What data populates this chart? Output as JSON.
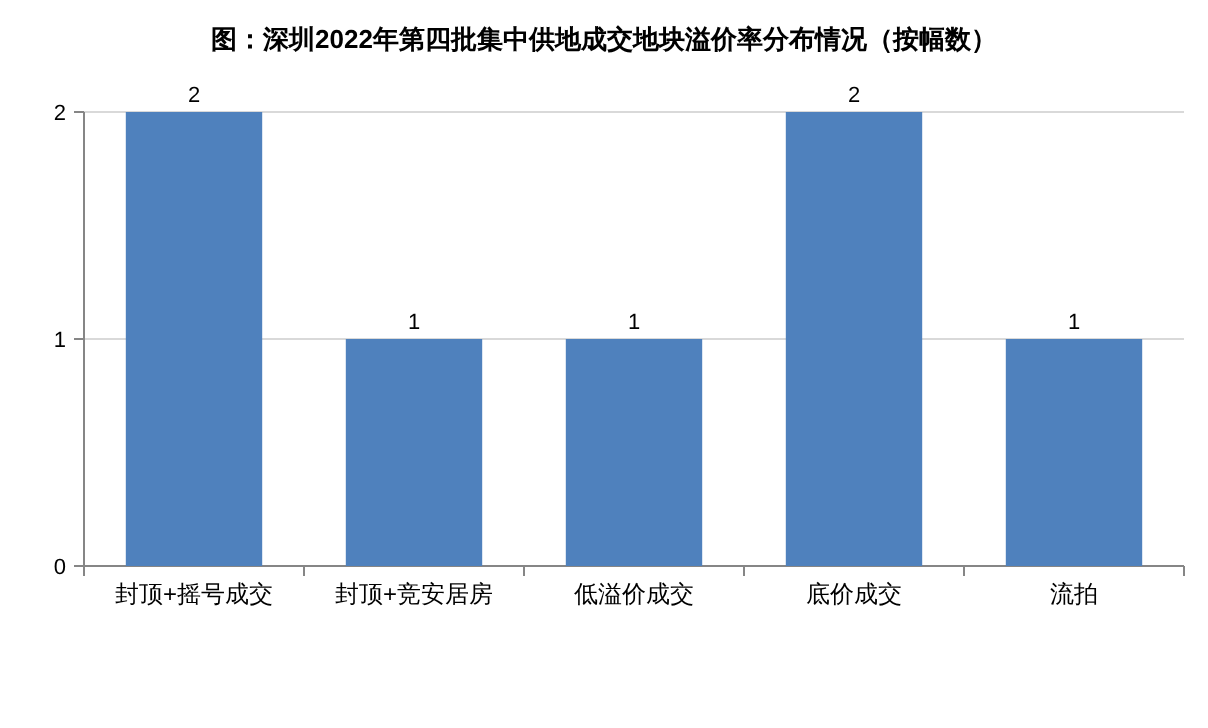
{
  "chart_data": {
    "type": "bar",
    "title": "图：深圳2022年第四批集中供地成交地块溢价率分布情况（按幅数）",
    "categories": [
      "封顶+摇号成交",
      "封顶+竞安居房",
      "低溢价成交",
      "底价成交",
      "流拍"
    ],
    "values": [
      2,
      1,
      1,
      2,
      1
    ],
    "color": "#4f81bd",
    "ylim": [
      0,
      2
    ],
    "yticks": [
      0,
      1,
      2
    ],
    "grid": "y",
    "data_labels": true
  }
}
